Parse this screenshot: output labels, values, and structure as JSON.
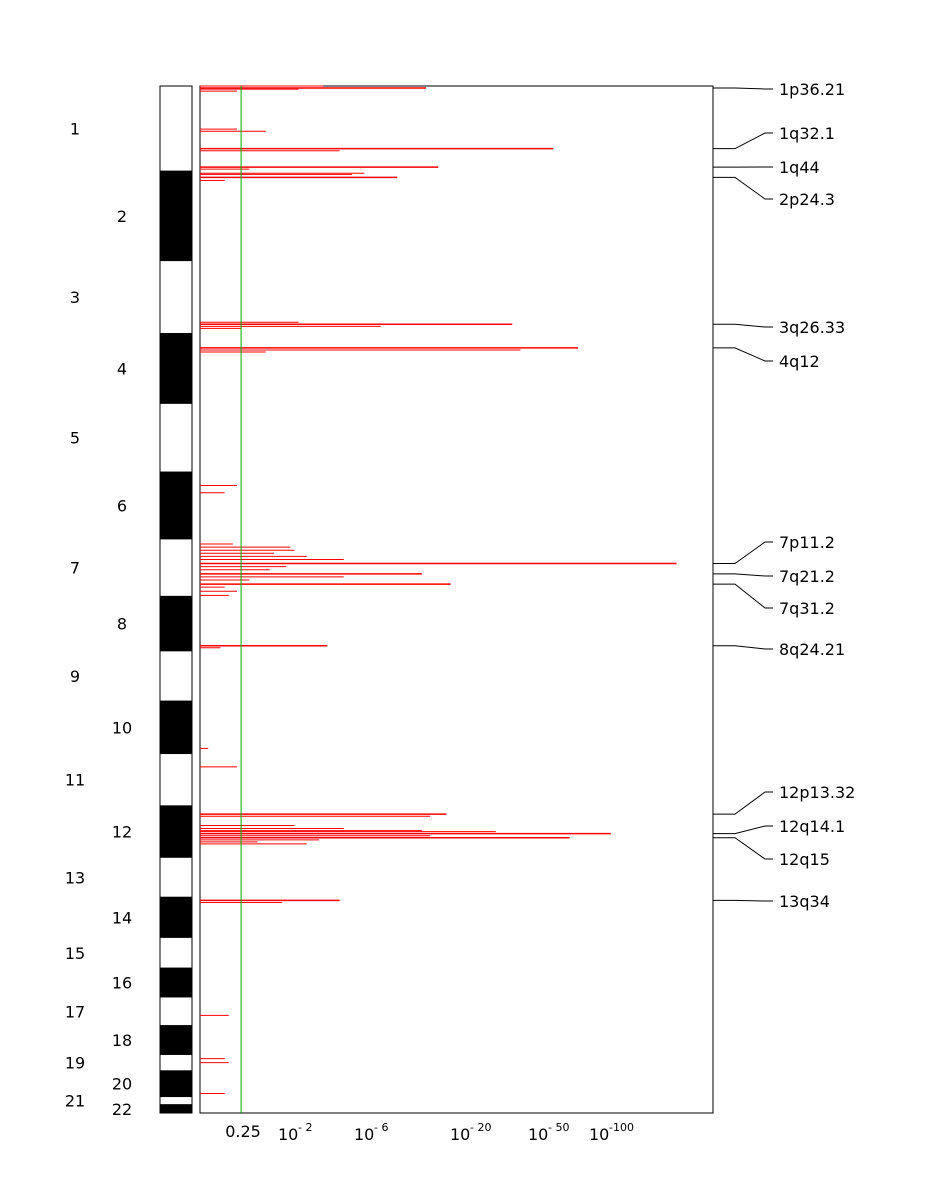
{
  "chart_data": {
    "type": "bar",
    "orientation": "horizontal",
    "description_axis_y": "genome position by chromosome",
    "xscale": "log-q-value",
    "threshold": 0.25,
    "threshold_color": "#00aa00",
    "bar_color": "#ff0000",
    "x_ticks": [
      {
        "base": "0.25",
        "exp": ""
      },
      {
        "base": "10",
        "exp": "- 2"
      },
      {
        "base": "10",
        "exp": "- 6"
      },
      {
        "base": "10",
        "exp": "- 20"
      },
      {
        "base": "10",
        "exp": "- 50"
      },
      {
        "base": "10",
        "exp": "-100"
      }
    ],
    "chromosomes": [
      {
        "label": "1",
        "start": 0,
        "end": 8.3
      },
      {
        "label": "2",
        "start": 8.3,
        "end": 17.0
      },
      {
        "label": "3",
        "start": 17.0,
        "end": 24.1
      },
      {
        "label": "4",
        "start": 24.1,
        "end": 30.9
      },
      {
        "label": "5",
        "start": 30.9,
        "end": 37.6
      },
      {
        "label": "6",
        "start": 37.6,
        "end": 44.1
      },
      {
        "label": "7",
        "start": 44.1,
        "end": 49.7
      },
      {
        "label": "8",
        "start": 49.7,
        "end": 55.0
      },
      {
        "label": "9",
        "start": 55.0,
        "end": 59.9
      },
      {
        "label": "10",
        "start": 59.9,
        "end": 65.0
      },
      {
        "label": "11",
        "start": 65.0,
        "end": 70.1
      },
      {
        "label": "12",
        "start": 70.1,
        "end": 75.1
      },
      {
        "label": "13",
        "start": 75.1,
        "end": 79.0
      },
      {
        "label": "14",
        "start": 79.0,
        "end": 82.9
      },
      {
        "label": "15",
        "start": 82.9,
        "end": 85.9
      },
      {
        "label": "16",
        "start": 85.9,
        "end": 88.7
      },
      {
        "label": "17",
        "start": 88.7,
        "end": 91.5
      },
      {
        "label": "18",
        "start": 91.5,
        "end": 94.3
      },
      {
        "label": "19",
        "start": 94.3,
        "end": 95.9
      },
      {
        "label": "20",
        "start": 95.9,
        "end": 98.4
      },
      {
        "label": "21",
        "start": 98.4,
        "end": 99.2
      },
      {
        "label": "22",
        "start": 99.2,
        "end": 100.0
      }
    ],
    "peaks": [
      {
        "label": "1p36.21",
        "pos": 0.2,
        "score": 5.5
      },
      {
        "label": "1q32.1",
        "pos": 6.1,
        "score": 8.6
      },
      {
        "label": "1q44",
        "pos": 7.9,
        "score": 5.8
      },
      {
        "label": "2p24.3",
        "pos": 8.9,
        "score": 4.8
      },
      {
        "label": "3q26.33",
        "pos": 23.2,
        "score": 7.6
      },
      {
        "label": "4q12",
        "pos": 25.5,
        "score": 9.2
      },
      {
        "label": "7p11.2",
        "pos": 46.5,
        "score": 11.6
      },
      {
        "label": "7q21.2",
        "pos": 47.5,
        "score": 5.4
      },
      {
        "label": "7q31.2",
        "pos": 48.5,
        "score": 6.1
      },
      {
        "label": "8q24.21",
        "pos": 54.5,
        "score": 3.1
      },
      {
        "label": "12p13.32",
        "pos": 70.9,
        "score": 6.0
      },
      {
        "label": "12q14.1",
        "pos": 72.8,
        "score": 10.0
      },
      {
        "label": "12q15",
        "pos": 73.2,
        "score": 9.0
      },
      {
        "label": "13q34",
        "pos": 79.3,
        "score": 3.4
      }
    ],
    "minor_bars": [
      {
        "pos": 0.0,
        "score": 3.0
      },
      {
        "pos": 0.3,
        "score": 2.4
      },
      {
        "pos": 0.5,
        "score": 0.9
      },
      {
        "pos": 4.2,
        "score": 0.9
      },
      {
        "pos": 4.4,
        "score": 1.6
      },
      {
        "pos": 6.3,
        "score": 3.4
      },
      {
        "pos": 8.1,
        "score": 1.2
      },
      {
        "pos": 8.5,
        "score": 4.0
      },
      {
        "pos": 8.6,
        "score": 3.7
      },
      {
        "pos": 9.2,
        "score": 0.6
      },
      {
        "pos": 23.0,
        "score": 2.4
      },
      {
        "pos": 23.4,
        "score": 4.4
      },
      {
        "pos": 23.6,
        "score": 1.0
      },
      {
        "pos": 25.7,
        "score": 7.8
      },
      {
        "pos": 25.9,
        "score": 1.6
      },
      {
        "pos": 38.9,
        "score": 0.9
      },
      {
        "pos": 39.6,
        "score": 0.6
      },
      {
        "pos": 44.6,
        "score": 0.8
      },
      {
        "pos": 44.9,
        "score": 2.2
      },
      {
        "pos": 45.2,
        "score": 2.3
      },
      {
        "pos": 45.5,
        "score": 1.8
      },
      {
        "pos": 45.8,
        "score": 2.6
      },
      {
        "pos": 46.1,
        "score": 3.5
      },
      {
        "pos": 46.8,
        "score": 2.1
      },
      {
        "pos": 47.1,
        "score": 1.7
      },
      {
        "pos": 47.8,
        "score": 3.5
      },
      {
        "pos": 48.1,
        "score": 1.2
      },
      {
        "pos": 48.8,
        "score": 0.6
      },
      {
        "pos": 49.2,
        "score": 0.9
      },
      {
        "pos": 49.6,
        "score": 0.7
      },
      {
        "pos": 54.7,
        "score": 0.5
      },
      {
        "pos": 64.5,
        "score": 0.2
      },
      {
        "pos": 66.3,
        "score": 0.9
      },
      {
        "pos": 71.1,
        "score": 5.6
      },
      {
        "pos": 72.0,
        "score": 2.3
      },
      {
        "pos": 72.3,
        "score": 3.5
      },
      {
        "pos": 72.5,
        "score": 5.4
      },
      {
        "pos": 72.6,
        "score": 7.2
      },
      {
        "pos": 73.0,
        "score": 5.6
      },
      {
        "pos": 73.4,
        "score": 2.9
      },
      {
        "pos": 73.6,
        "score": 1.4
      },
      {
        "pos": 73.8,
        "score": 2.6
      },
      {
        "pos": 79.5,
        "score": 2.0
      },
      {
        "pos": 90.5,
        "score": 0.7
      },
      {
        "pos": 94.7,
        "score": 0.6
      },
      {
        "pos": 95.1,
        "score": 0.7
      },
      {
        "pos": 98.1,
        "score": 0.6
      }
    ]
  }
}
